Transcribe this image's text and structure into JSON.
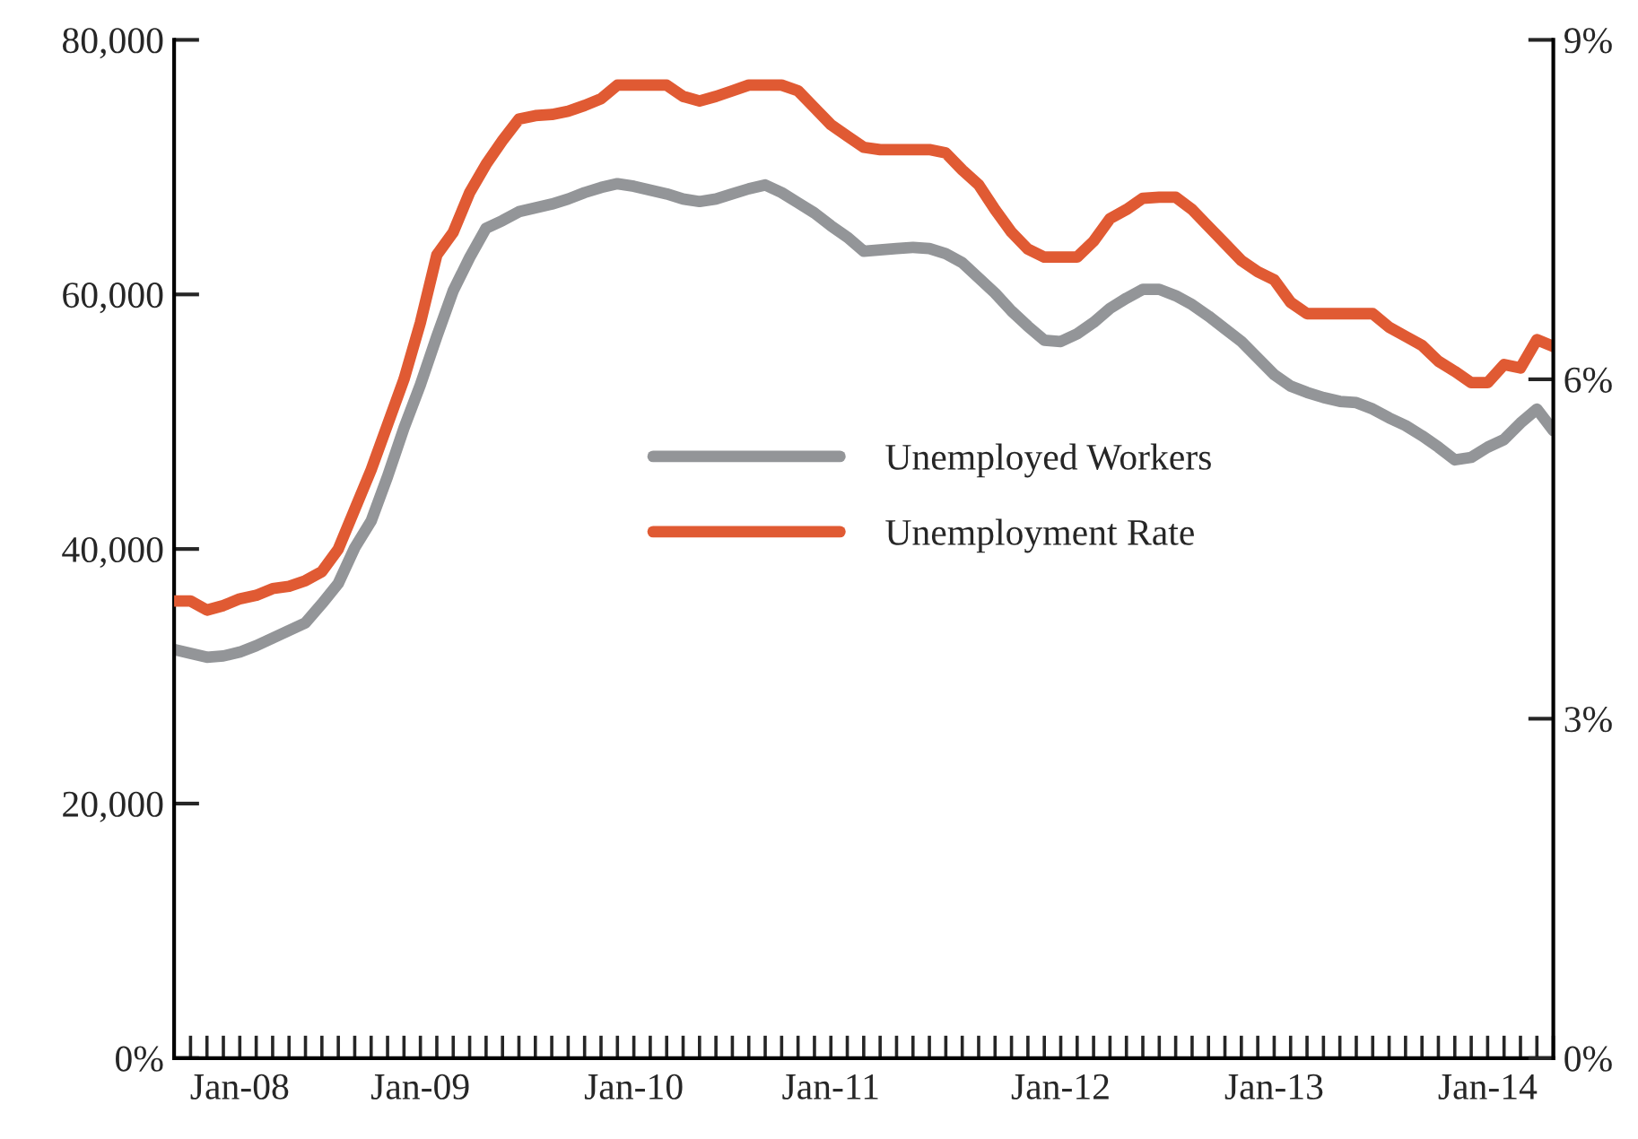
{
  "chart_data": {
    "type": "line",
    "categories": [
      null,
      null,
      null,
      null,
      "Jan-08",
      null,
      null,
      null,
      null,
      null,
      null,
      null,
      null,
      null,
      null,
      "Jan-09",
      null,
      null,
      null,
      null,
      null,
      null,
      null,
      null,
      null,
      null,
      null,
      null,
      "Jan-10",
      null,
      null,
      null,
      null,
      null,
      null,
      null,
      null,
      null,
      null,
      null,
      "Jan-11",
      null,
      null,
      null,
      null,
      null,
      null,
      null,
      null,
      null,
      null,
      null,
      null,
      null,
      "Jan-12",
      null,
      null,
      null,
      null,
      null,
      null,
      null,
      null,
      null,
      null,
      null,
      null,
      "Jan-13",
      null,
      null,
      null,
      null,
      null,
      null,
      null,
      null,
      null,
      null,
      null,
      null,
      "Jan-14",
      null,
      null,
      null,
      null
    ],
    "series": [
      {
        "name": "Unemployed Workers",
        "color": "#939598",
        "values": [
          32100,
          31800,
          31500,
          31600,
          31900,
          32400,
          33000,
          33600,
          34200,
          35700,
          37300,
          40100,
          42200,
          45700,
          49500,
          52900,
          56700,
          60300,
          62900,
          65200,
          65800,
          66500,
          66800,
          67100,
          67500,
          68000,
          68400,
          68700,
          68500,
          68200,
          67900,
          67500,
          67300,
          67500,
          67900,
          68300,
          68600,
          68000,
          67200,
          66400,
          65400,
          64500,
          63400,
          63500,
          63600,
          63700,
          63600,
          63200,
          62500,
          61300,
          60100,
          58700,
          57500,
          56400,
          56300,
          56900,
          57800,
          58900,
          59700,
          60400,
          60400,
          59900,
          59200,
          58300,
          57300,
          56300,
          55000,
          53700,
          52800,
          52300,
          51900,
          51600,
          51500,
          51000,
          50300,
          49700,
          48900,
          48000,
          47000,
          47200,
          48000,
          48600,
          49900,
          51000,
          49300
        ]
      },
      {
        "name": "Unemployment Rate",
        "color": "#e05a33",
        "axis": "y2",
        "values": [
          4.04,
          4.04,
          3.96,
          4.0,
          4.06,
          4.09,
          4.15,
          4.17,
          4.22,
          4.3,
          4.5,
          4.85,
          5.2,
          5.6,
          6.0,
          6.5,
          7.1,
          7.3,
          7.65,
          7.9,
          8.11,
          8.3,
          8.33,
          8.34,
          8.37,
          8.42,
          8.48,
          8.6,
          8.6,
          8.6,
          8.6,
          8.5,
          8.46,
          8.5,
          8.55,
          8.6,
          8.6,
          8.6,
          8.55,
          8.4,
          8.25,
          8.15,
          8.05,
          8.03,
          8.03,
          8.03,
          8.03,
          8.0,
          7.85,
          7.72,
          7.5,
          7.3,
          7.15,
          7.08,
          7.08,
          7.08,
          7.22,
          7.42,
          7.5,
          7.6,
          7.61,
          7.61,
          7.5,
          7.35,
          7.2,
          7.05,
          6.95,
          6.88,
          6.68,
          6.58,
          6.58,
          6.58,
          6.58,
          6.58,
          6.46,
          6.38,
          6.3,
          6.16,
          6.07,
          5.97,
          5.97,
          6.13,
          6.1,
          6.35,
          6.29
        ]
      }
    ],
    "ylim": [
      0,
      80000
    ],
    "yticks": [
      {
        "value": 0,
        "label": "0%"
      },
      {
        "value": 20000,
        "label": "20,000"
      },
      {
        "value": 40000,
        "label": "40,000"
      },
      {
        "value": 60000,
        "label": "60,000"
      },
      {
        "value": 80000,
        "label": "80,000"
      }
    ],
    "y2lim": [
      0,
      9
    ],
    "y2ticks": [
      {
        "value": 0,
        "label": "0%"
      },
      {
        "value": 3,
        "label": "3%"
      },
      {
        "value": 6,
        "label": "6%"
      },
      {
        "value": 9,
        "label": "9%"
      }
    ],
    "grid": false,
    "legend": "center"
  }
}
